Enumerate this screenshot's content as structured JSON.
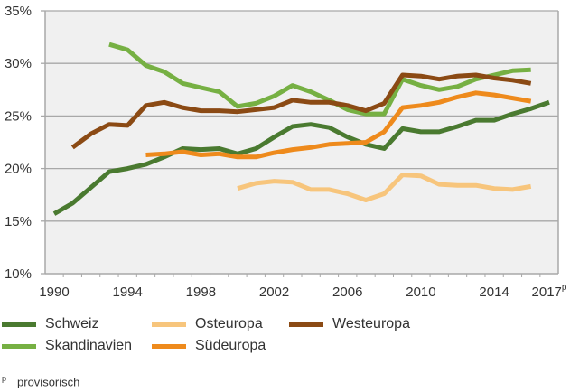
{
  "chart_data": {
    "type": "line",
    "title": "",
    "xlabel": "",
    "ylabel": "",
    "ylim": [
      10,
      35
    ],
    "xlim": [
      1990,
      2017
    ],
    "y_ticks": [
      "10%",
      "15%",
      "20%",
      "25%",
      "30%",
      "35%"
    ],
    "y_tick_values": [
      10,
      15,
      20,
      25,
      30,
      35
    ],
    "x_ticks": [
      "1990",
      "1994",
      "1998",
      "2002",
      "2006",
      "2010",
      "2014",
      "2017"
    ],
    "x_tick_values": [
      1990,
      1994,
      1998,
      2002,
      2006,
      2010,
      2014,
      2017
    ],
    "x_tick_suffix_last": "p",
    "grid": true,
    "legend_position": "bottom",
    "series": [
      {
        "name": "Schweiz",
        "color": "#4a7a30",
        "start_year": 1990,
        "values": [
          15.7,
          16.7,
          18.2,
          19.7,
          20.0,
          20.4,
          21.1,
          21.9,
          21.8,
          21.9,
          21.4,
          21.9,
          23.0,
          24.0,
          24.2,
          23.9,
          23.0,
          22.3,
          21.9,
          23.8,
          23.5,
          23.5,
          24.0,
          24.6,
          24.6,
          25.2,
          25.7,
          26.3
        ]
      },
      {
        "name": "Skandinavien",
        "color": "#76b043",
        "start_year": 1993,
        "values": [
          31.8,
          31.3,
          29.8,
          29.2,
          28.1,
          27.7,
          27.3,
          25.9,
          26.2,
          26.9,
          27.9,
          27.3,
          26.5,
          25.6,
          25.2,
          25.2,
          28.5,
          27.9,
          27.5,
          27.8,
          28.5,
          28.9,
          29.3,
          29.4
        ]
      },
      {
        "name": "Osteuropa",
        "color": "#f7c57c",
        "start_year": 2000,
        "values": [
          18.1,
          18.6,
          18.8,
          18.7,
          18.0,
          18.0,
          17.6,
          17.0,
          17.6,
          19.4,
          19.3,
          18.5,
          18.4,
          18.4,
          18.1,
          18.0,
          18.3
        ]
      },
      {
        "name": "Südeuropa",
        "color": "#ee8a1c",
        "start_year": 1995,
        "values": [
          21.3,
          21.4,
          21.6,
          21.3,
          21.4,
          21.1,
          21.1,
          21.5,
          21.8,
          22.0,
          22.3,
          22.4,
          22.5,
          23.5,
          25.8,
          26.0,
          26.3,
          26.8,
          27.2,
          27.0,
          26.7,
          26.4
        ]
      },
      {
        "name": "Westeuropa",
        "color": "#8b4a14",
        "start_year": 1991,
        "values": [
          22.0,
          23.3,
          24.2,
          24.1,
          26.0,
          26.3,
          25.8,
          25.5,
          25.5,
          25.4,
          25.6,
          25.8,
          26.5,
          26.3,
          26.3,
          26.0,
          25.5,
          26.2,
          28.9,
          28.8,
          28.5,
          28.8,
          28.9,
          28.6,
          28.4,
          28.1
        ]
      }
    ]
  },
  "legend": {
    "items": [
      {
        "label": "Schweiz",
        "color": "#4a7a30"
      },
      {
        "label": "Osteuropa",
        "color": "#f7c57c"
      },
      {
        "label": "Westeuropa",
        "color": "#8b4a14"
      },
      {
        "label": "Skandinavien",
        "color": "#76b043"
      },
      {
        "label": "Südeuropa",
        "color": "#ee8a1c"
      }
    ]
  },
  "footnote": {
    "marker": "p",
    "text": "provisorisch"
  }
}
